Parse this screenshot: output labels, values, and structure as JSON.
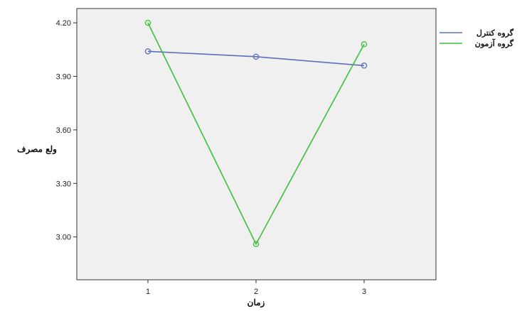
{
  "chart_data": {
    "type": "line",
    "x": [
      1,
      2,
      3
    ],
    "x_tick_labels": [
      "1",
      "2",
      "3"
    ],
    "y_tick_labels": [
      "3.00",
      "3.30",
      "3.60",
      "3.90",
      "4.20"
    ],
    "xlabel": "زمان",
    "ylabel": "ولع مصرف",
    "ylim": [
      2.76,
      4.28
    ],
    "grid": false,
    "legend_position": "top-right",
    "series": [
      {
        "name": "گروه کنترل",
        "color": "#5b6fbd",
        "values": [
          4.04,
          4.01,
          3.96
        ]
      },
      {
        "name": "گروه آزمون",
        "color": "#3cc03c",
        "values": [
          4.2,
          2.96,
          4.08
        ]
      }
    ]
  }
}
